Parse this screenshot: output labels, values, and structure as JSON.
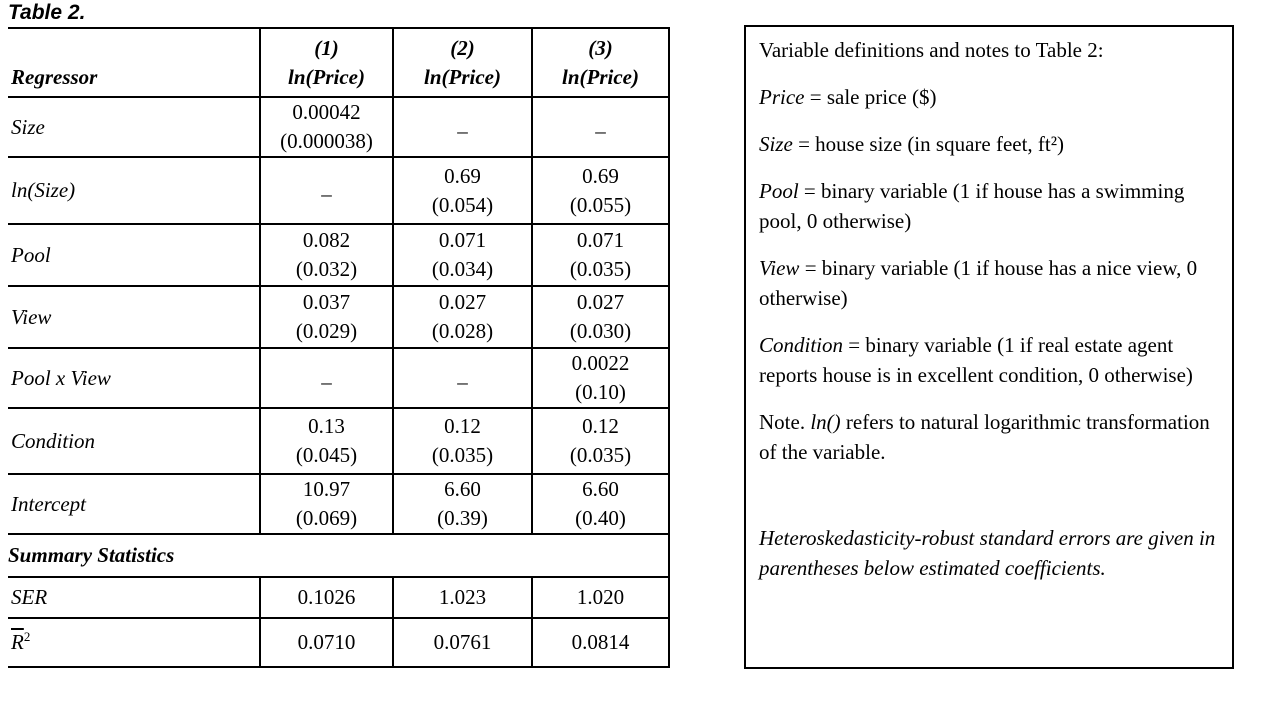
{
  "caption": "Table 2.",
  "table": {
    "header": {
      "regressor_label": "Regressor",
      "columns": [
        {
          "number": "(1)",
          "dependent": "ln(Price)"
        },
        {
          "number": "(2)",
          "dependent": "ln(Price)"
        },
        {
          "number": "(3)",
          "dependent": "ln(Price)"
        }
      ]
    },
    "rows": [
      {
        "label": "Size",
        "cells": [
          {
            "coef": "0.00042",
            "se": "(0.000038)"
          },
          {
            "dash": "–"
          },
          {
            "dash": "–"
          }
        ]
      },
      {
        "label": "ln(Size)",
        "cells": [
          {
            "dash": "–"
          },
          {
            "coef": "0.69",
            "se": "(0.054)"
          },
          {
            "coef": "0.69",
            "se": "(0.055)"
          }
        ]
      },
      {
        "label": "Pool",
        "cells": [
          {
            "coef": "0.082",
            "se": "(0.032)"
          },
          {
            "coef": "0.071",
            "se": "(0.034)"
          },
          {
            "coef": "0.071",
            "se": "(0.035)"
          }
        ]
      },
      {
        "label": "View",
        "cells": [
          {
            "coef": "0.037",
            "se": "(0.029)"
          },
          {
            "coef": "0.027",
            "se": "(0.028)"
          },
          {
            "coef": "0.027",
            "se": "(0.030)"
          }
        ]
      },
      {
        "label": "Pool x View",
        "cells": [
          {
            "dash": "–"
          },
          {
            "dash": "–"
          },
          {
            "coef": "0.0022",
            "se": "(0.10)"
          }
        ]
      },
      {
        "label": "Condition",
        "cells": [
          {
            "coef": "0.13",
            "se": "(0.045)"
          },
          {
            "coef": "0.12",
            "se": "(0.035)"
          },
          {
            "coef": "0.12",
            "se": "(0.035)"
          }
        ]
      },
      {
        "label": "Intercept",
        "cells": [
          {
            "coef": "10.97",
            "se": "(0.069)"
          },
          {
            "coef": "6.60",
            "se": "(0.39)"
          },
          {
            "coef": "6.60",
            "se": "(0.40)"
          }
        ]
      }
    ],
    "summary_section_label": "Summary Statistics",
    "summary_rows": [
      {
        "label": "SER",
        "values": [
          "0.1026",
          "1.023",
          "1.020"
        ]
      },
      {
        "label": "R",
        "label_sup": "2",
        "label_overline": true,
        "values": [
          "0.0710",
          "0.0761",
          "0.0814"
        ]
      }
    ]
  },
  "notes_box": {
    "title": "Variable definitions and notes to Table 2:",
    "definitions": [
      {
        "term": "Price",
        "rest": " = sale price ($)"
      },
      {
        "term": "Size",
        "rest": " = house size (in square feet, ft²)"
      },
      {
        "term": "Pool",
        "rest": " = binary variable (1 if house has a swimming pool, 0 otherwise)"
      },
      {
        "term": "View",
        "rest": " = binary variable (1 if house has a nice view, 0 otherwise)"
      },
      {
        "term": "Condition",
        "rest": " = binary variable (1 if real estate agent reports house is in excellent condition, 0 otherwise)"
      }
    ],
    "note": {
      "prefix": "Note. ",
      "term": "ln()",
      "rest": " refers to natural logarithmic transformation of the variable."
    },
    "footnote": "Heteroskedasticity-robust standard errors are given in parentheses below estimated coefficients."
  }
}
